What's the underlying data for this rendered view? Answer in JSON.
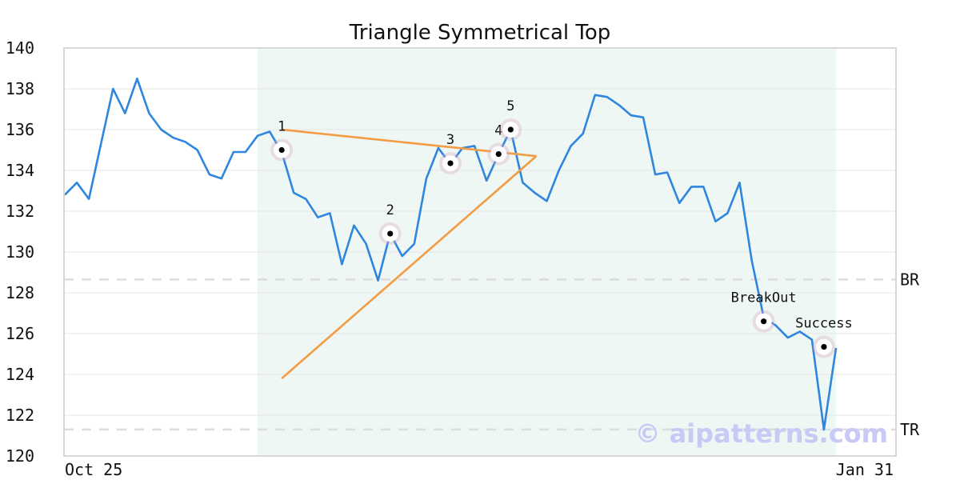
{
  "chart_data": {
    "type": "line",
    "title": "Triangle Symmetrical Top",
    "xlabel": "",
    "ylabel": "",
    "ylim": [
      120,
      140
    ],
    "y_ticks": [
      120,
      122,
      124,
      126,
      128,
      130,
      132,
      134,
      136,
      138,
      140
    ],
    "x_tick_labels": [
      "Oct 25",
      "Jan 31"
    ],
    "grid": true,
    "legend": "none",
    "series": [
      {
        "color": "#2e86de",
        "values": [
          132.8,
          133.4,
          132.6,
          135.3,
          138.0,
          136.8,
          138.5,
          136.8,
          136.0,
          135.6,
          135.4,
          135.0,
          133.8,
          133.6,
          134.9,
          134.9,
          135.7,
          135.9,
          134.9,
          132.9,
          132.6,
          131.7,
          131.9,
          129.4,
          131.3,
          130.4,
          128.6,
          130.9,
          129.8,
          130.4,
          133.6,
          135.1,
          134.3,
          135.1,
          135.2,
          133.5,
          134.8,
          136.0,
          133.4,
          132.9,
          132.5,
          134.0,
          135.2,
          135.8,
          137.7,
          137.6,
          137.2,
          136.7,
          136.6,
          133.8,
          133.9,
          132.4,
          133.2,
          133.2,
          131.5,
          131.9,
          133.4,
          129.6,
          126.8,
          126.4,
          125.8,
          126.1,
          125.7,
          121.3,
          125.3
        ]
      }
    ],
    "shaded_region": {
      "start_index": 16,
      "end_index": 64,
      "color": "#eef7f3"
    },
    "reference_lines": [
      {
        "label": "BR",
        "value": 128.65
      },
      {
        "label": "TR",
        "value": 121.3
      }
    ],
    "trendlines": [
      {
        "color": "#f39c45",
        "from": {
          "index": 18,
          "value": 136.0
        },
        "to": {
          "index": 39,
          "value": 134.7
        }
      },
      {
        "color": "#f39c45",
        "from": {
          "index": 18,
          "value": 123.8
        },
        "to": {
          "index": 39,
          "value": 134.7
        }
      }
    ],
    "annotations": [
      {
        "label": "1",
        "index": 18,
        "value": 135.0
      },
      {
        "label": "2",
        "index": 27,
        "value": 130.9
      },
      {
        "label": "3",
        "index": 32,
        "value": 134.35
      },
      {
        "label": "4",
        "index": 36,
        "value": 134.8
      },
      {
        "label": "5",
        "index": 37,
        "value": 136.0
      },
      {
        "label": "BreakOut",
        "index": 58,
        "value": 126.6
      },
      {
        "label": "Success",
        "index": 63,
        "value": 125.35
      }
    ],
    "watermark": "© aipatterns.com"
  }
}
